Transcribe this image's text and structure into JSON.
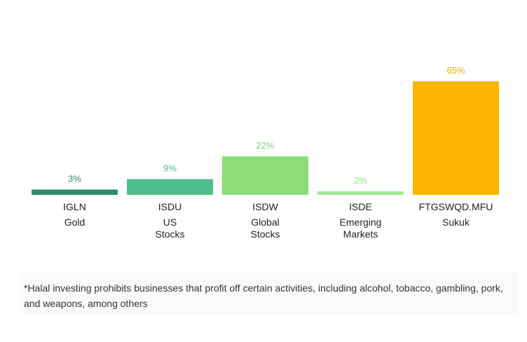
{
  "chart_data": {
    "type": "bar",
    "categories": [
      {
        "ticker": "IGLN",
        "name_lines": [
          "Gold"
        ]
      },
      {
        "ticker": "ISDU",
        "name_lines": [
          "US",
          "Stocks"
        ]
      },
      {
        "ticker": "ISDW",
        "name_lines": [
          "Global",
          "Stocks"
        ]
      },
      {
        "ticker": "ISDE",
        "name_lines": [
          "Emerging",
          "Markets"
        ]
      },
      {
        "ticker": "FTGSWQD.MFU",
        "name_lines": [
          "Sukuk"
        ]
      }
    ],
    "values": [
      3,
      9,
      22,
      2,
      65
    ],
    "value_labels": [
      "3%",
      "9%",
      "22%",
      "2%",
      "65%"
    ],
    "colors": [
      "#2e8b6b",
      "#4cbf8c",
      "#8cdd78",
      "#a3e895",
      "#f9b500"
    ],
    "label_colors": [
      "#2e8b6b",
      "#4cbf8c",
      "#7ed46e",
      "#8fe07f",
      "#f0a800"
    ],
    "ylim": [
      0,
      65
    ],
    "grid": false,
    "legend": "none"
  },
  "footnote": "*Halal investing prohibits businesses that profit off certain activities, including alcohol, tobacco, gambling, pork, and weapons, among others"
}
